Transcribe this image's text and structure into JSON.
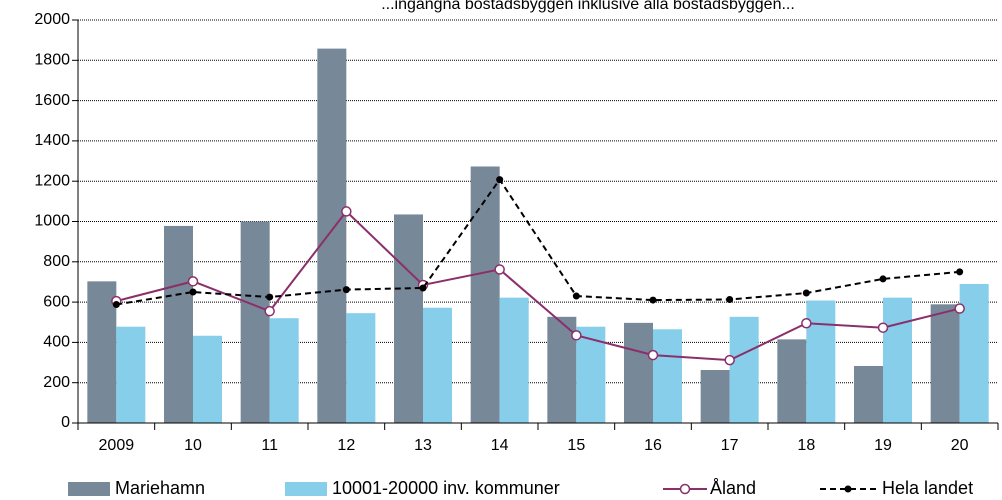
{
  "chart_data": {
    "type": "bar",
    "title": "...ingångna bostadsbyggen inklusive alla bostadsbyggen...",
    "categories": [
      "2009",
      "10",
      "11",
      "12",
      "13",
      "14",
      "15",
      "16",
      "17",
      "18",
      "19",
      "20"
    ],
    "ylim": [
      0,
      2000
    ],
    "yticks": [
      0,
      200,
      400,
      600,
      800,
      1000,
      1200,
      1400,
      1600,
      1800,
      2000
    ],
    "grid": true,
    "legend_position": "bottom",
    "series": [
      {
        "name": "Mariehamn",
        "kind": "bar",
        "color": "#778899",
        "values": [
          703,
          978,
          1000,
          1858,
          1035,
          1273,
          527,
          497,
          263,
          415,
          283,
          589
        ]
      },
      {
        "name": "10001-20000 inv. kommuner",
        "kind": "bar",
        "color": "#87CEEB",
        "values": [
          478,
          433,
          520,
          545,
          572,
          622,
          478,
          465,
          527,
          608,
          622,
          690
        ]
      },
      {
        "name": "Åland",
        "kind": "line",
        "color": "#8B2F6B",
        "marker": "open-circle",
        "values": [
          605,
          703,
          555,
          1050,
          685,
          762,
          435,
          337,
          312,
          495,
          473,
          568
        ]
      },
      {
        "name": "Hela landet",
        "kind": "dashed-line",
        "color": "#000000",
        "marker": "filled-dot",
        "values": [
          588,
          650,
          625,
          662,
          670,
          1208,
          630,
          610,
          613,
          645,
          715,
          750
        ]
      }
    ]
  }
}
